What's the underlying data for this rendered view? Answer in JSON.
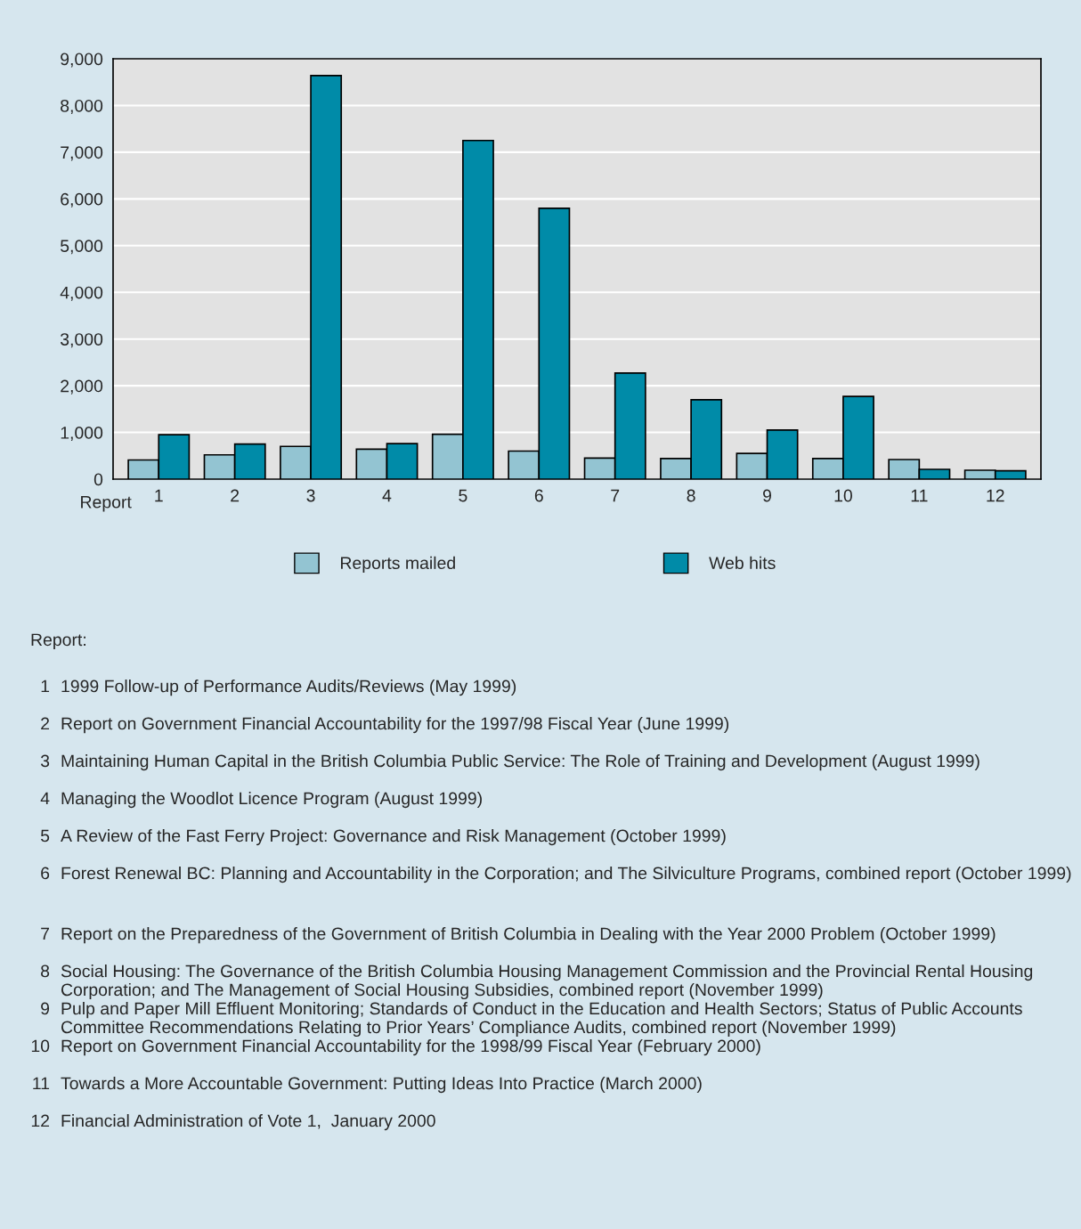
{
  "chart_data": {
    "type": "bar",
    "categories": [
      "1",
      "2",
      "3",
      "4",
      "5",
      "6",
      "7",
      "8",
      "9",
      "10",
      "11",
      "12"
    ],
    "series": [
      {
        "name": "Reports mailed",
        "color": "#93c4d2",
        "values": [
          410,
          520,
          700,
          640,
          960,
          600,
          450,
          440,
          550,
          440,
          420,
          190
        ]
      },
      {
        "name": "Web hits",
        "color": "#008ba8",
        "values": [
          950,
          750,
          8640,
          760,
          7250,
          5800,
          2270,
          1700,
          1050,
          1770,
          210,
          180
        ]
      }
    ],
    "xlabel": "Report",
    "ylim": [
      0,
      9000
    ],
    "yticks": [
      0,
      {
        "value": 1000,
        "label": "1,000"
      },
      {
        "value": 2000,
        "label": "2,000"
      },
      {
        "value": 3000,
        "label": "3,000"
      },
      {
        "value": 4000,
        "label": "4,000"
      },
      {
        "value": 5000,
        "label": "5,000"
      },
      {
        "value": 6000,
        "label": "6,000"
      },
      {
        "value": 7000,
        "label": "7,000"
      },
      {
        "value": 8000,
        "label": "8,000"
      },
      {
        "value": 9000,
        "label": "9,000"
      }
    ],
    "grid": "y",
    "legend": "bottom",
    "annotations": [
      "Report:",
      "1999 Follow-up of Performance Audits/Reviews (May 1999)",
      "Report on Government Financial Accountability for the 1997/98 Fiscal Year (June 1999)",
      "Maintaining Human Capital in the British Columbia Public Service: The Role of Training and Development (August 1999)",
      "Managing the Woodlot Licence Program (August 1999)",
      "A Review of the Fast Ferry Project: Governance and Risk Management (October 1999)",
      "Forest Renewal BC: Planning and Accountability in the Corporation; and The Silviculture Programs, combined report (October 1999)",
      "Report on the Preparedness of the Government of British Columbia in Dealing with the Year 2000 Problem (October 1999)",
      "Social Housing: The Governance of the British Columbia Housing Management Commission and the Provincial Rental Housing Corporation; and The Management of Social Housing Subsidies, combined report (November 1999)",
      "Pulp and Paper Mill Effluent Monitoring; Standards of Conduct in the Education and Health Sectors; Status of Public Accounts Committee Recommendations Relating to Prior Years’ Compliance Audits, combined report (November 1999)",
      "Report on Government Financial Accountability for the 1998/99 Fiscal Year (February 2000)",
      "Towards a More Accountable Government: Putting Ideas Into Practice (March 2000)",
      "Financial Administration of Vote 1,  January 2000"
    ]
  }
}
